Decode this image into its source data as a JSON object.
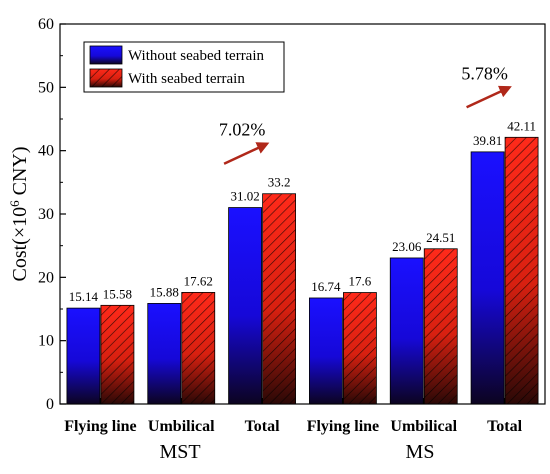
{
  "chart_data": {
    "type": "bar",
    "ylabel_main": "Cost(×10",
    "ylabel_sup": "6",
    "ylabel_unit": " CNY)",
    "ylim": [
      0,
      60
    ],
    "yticks": [
      0,
      10,
      20,
      30,
      40,
      50,
      60
    ],
    "groups": [
      "MST",
      "MS"
    ],
    "categories": [
      "Flying line",
      "Umbilical",
      "Total",
      "Flying line",
      "Umbilical",
      "Total"
    ],
    "series": [
      {
        "name": "Without seabed terrain",
        "values": [
          15.14,
          15.88,
          31.02,
          16.74,
          23.06,
          39.81
        ],
        "labels": [
          "15.14",
          "15.88",
          "31.02",
          "16.74",
          "23.06",
          "39.81"
        ],
        "color": "#1a10ff"
      },
      {
        "name": "With seabed terrain",
        "values": [
          15.58,
          17.62,
          33.2,
          17.6,
          24.51,
          42.11
        ],
        "labels": [
          "15.58",
          "17.62",
          "33.2",
          "17.6",
          "24.51",
          "42.11"
        ],
        "color": "#ff2a1a"
      }
    ],
    "annotations": [
      {
        "text": "7.02%",
        "category_index": 2
      },
      {
        "text": "5.78%",
        "category_index": 5
      }
    ],
    "legend_position": "top-left",
    "grid": false,
    "arrow_color": "#b0281a"
  }
}
